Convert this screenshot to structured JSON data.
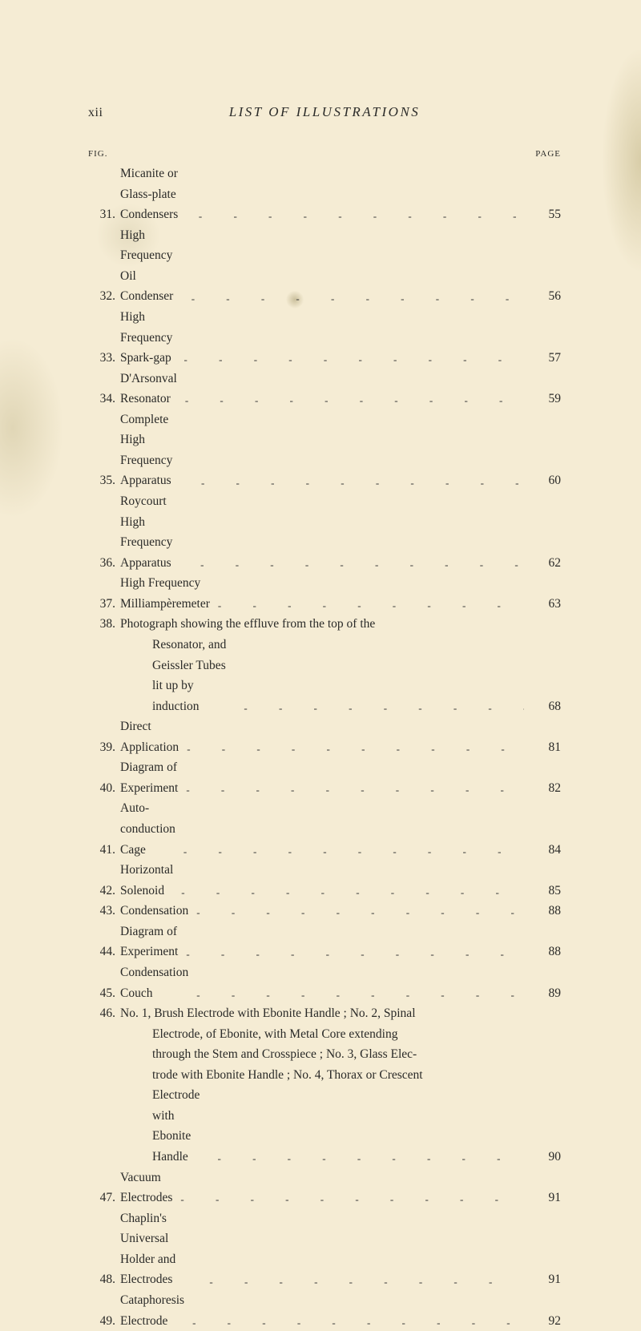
{
  "running_head": {
    "left": "xii",
    "center": "LIST OF ILLUSTRATIONS"
  },
  "column_labels": {
    "left": "FIG.",
    "right": "PAGE"
  },
  "entries": [
    {
      "fig": "31.",
      "title": "Micanite or Glass-plate Condensers",
      "page": "55"
    },
    {
      "fig": "32.",
      "title": "High Frequency Oil Condenser",
      "page": "56"
    },
    {
      "fig": "33.",
      "title": "High Frequency Spark-gap",
      "page": "57"
    },
    {
      "fig": "34.",
      "title": "D'Arsonval Resonator",
      "page": "59"
    },
    {
      "fig": "35.",
      "title": "Complete High Frequency Apparatus",
      "page": "60"
    },
    {
      "fig": "36.",
      "title": "Roycourt High Frequency Apparatus",
      "page": "62"
    },
    {
      "fig": "37.",
      "title": "High Frequency Milliampèremeter",
      "page": "63"
    },
    {
      "fig": "38.",
      "title_lines": [
        "Photograph showing the effluve from the top of the",
        "Resonator, and Geissler Tubes lit up by induction"
      ],
      "page": "68"
    },
    {
      "fig": "39.",
      "title": "Direct Application",
      "page": "81"
    },
    {
      "fig": "40.",
      "title": "Diagram of Experiment",
      "page": "82"
    },
    {
      "fig": "41.",
      "title": "Auto-conduction Cage",
      "page": "84"
    },
    {
      "fig": "42.",
      "title": "Horizontal Solenoid",
      "page": "85"
    },
    {
      "fig": "43.",
      "title": "Condensation",
      "page": "88"
    },
    {
      "fig": "44.",
      "title": "Diagram of Experiment",
      "page": "88"
    },
    {
      "fig": "45.",
      "title": "Condensation Couch",
      "page": "89"
    },
    {
      "fig": "46.",
      "title_lines": [
        "No. 1, Brush Electrode with Ebonite Handle ; No. 2, Spinal",
        "Electrode, of Ebonite, with Metal Core extending",
        "through the Stem and Crosspiece ; No. 3, Glass Elec-",
        "trode with Ebonite Handle ; No. 4, Thorax or Crescent",
        "Electrode with Ebonite Handle"
      ],
      "page": "90"
    },
    {
      "fig": "47.",
      "title": "Vacuum Electrodes",
      "page": "91"
    },
    {
      "fig": "48.",
      "title": "Chaplin's Universal Holder and Electrodes",
      "page": "91"
    },
    {
      "fig": "49.",
      "title": "Cataphoresis Electrode",
      "page": "92"
    }
  ]
}
